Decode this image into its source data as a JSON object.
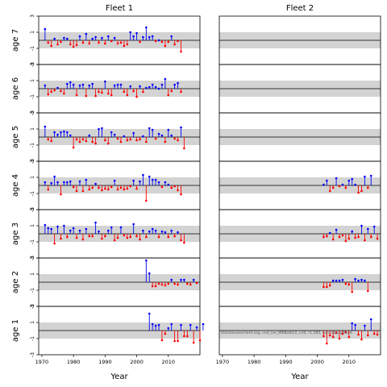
{
  "chart_data": {
    "type": "scatter",
    "style": "residual lollipop panels",
    "xlabel": "Year",
    "xlim": [
      1969,
      2020
    ],
    "ylim": [
      -3,
      3
    ],
    "y_ticks": [
      -3,
      -1,
      1,
      3
    ],
    "x_ticks": [
      1970,
      1980,
      1990,
      2000,
      2010
    ],
    "colors": {
      "positive": "#0000ff",
      "negative": "#ff0000",
      "band": "#d3d3d3",
      "zero_line": "#000000"
    },
    "fleets": [
      "Fleet 1",
      "Fleet 2"
    ],
    "row_labels": [
      "age 7",
      "age 6",
      "age 5",
      "age 4",
      "age 3",
      "age 2",
      "age 1"
    ],
    "watermark": "stockassessment.org, cod_nei_WKBaltic2_v16, r1.285, run: dbs2y0lunt.",
    "panels": [
      {
        "fleet": 0,
        "age": "age 7",
        "x_start": 1971,
        "values": [
          1.4,
          -0.3,
          -0.7,
          0.2,
          -0.5,
          -0.2,
          0.3,
          0.2,
          -0.5,
          -0.8,
          -0.6,
          0.5,
          -0.3,
          0.8,
          -0.4,
          0.2,
          0.4,
          -0.3,
          0.3,
          -0.4,
          0.5,
          -0.1,
          0.3,
          -0.4,
          -0.3,
          -0.7,
          -0.5,
          1.0,
          0.5,
          0.9,
          -0.2,
          0.4,
          1.6,
          0.4,
          0.5,
          -0.1,
          0.0,
          -0.2,
          -0.7,
          -0.2,
          0.5,
          -0.5,
          -0.1,
          -1.4
        ]
      },
      {
        "fleet": 0,
        "age": "age 6",
        "x_start": 1971,
        "values": [
          0.4,
          -0.7,
          -0.4,
          -0.2,
          0.1,
          -0.3,
          -0.6,
          0.6,
          0.8,
          0.5,
          -0.8,
          0.4,
          0.5,
          -0.9,
          0.4,
          0.6,
          -0.9,
          -0.4,
          -0.5,
          0.9,
          -0.6,
          -0.8,
          0.4,
          0.5,
          0.5,
          -0.4,
          -0.8,
          0.3,
          -0.3,
          -1.0,
          0.3,
          -0.4,
          0.1,
          0.2,
          0.5,
          0.2,
          0.0,
          0.5,
          1.2,
          -0.8,
          -0.3,
          0.5,
          0.7,
          -0.4
        ]
      },
      {
        "fleet": 0,
        "age": "age 5",
        "x_start": 1971,
        "values": [
          1.3,
          -0.3,
          -0.5,
          0.6,
          0.3,
          0.6,
          0.7,
          0.6,
          0.2,
          -1.3,
          -0.3,
          -0.6,
          -0.3,
          -0.5,
          0.2,
          -0.6,
          -0.8,
          1.0,
          1.1,
          -0.4,
          -0.8,
          0.6,
          0.3,
          -0.2,
          -0.6,
          0.1,
          -0.4,
          -0.3,
          0.5,
          -0.4,
          -0.3,
          0.1,
          -0.6,
          1.1,
          0.9,
          -0.2,
          0.4,
          0.2,
          -0.6,
          0.9,
          0.2,
          -0.2,
          -0.4,
          1.2,
          -1.4
        ]
      },
      {
        "fleet": 0,
        "age": "age 4",
        "x_start": 1971,
        "values": [
          0.4,
          -0.5,
          0.3,
          1.1,
          0.4,
          -1.1,
          0.4,
          0.4,
          0.5,
          -0.2,
          -0.7,
          0.5,
          -0.7,
          0.7,
          -0.5,
          -0.3,
          0.2,
          -0.3,
          -0.6,
          -0.4,
          -0.5,
          -0.2,
          0.6,
          -0.5,
          -0.3,
          -0.5,
          -0.4,
          -0.1,
          0.6,
          -0.4,
          0.5,
          1.3,
          -1.9,
          1.1,
          0.7,
          0.7,
          0.4,
          -0.2,
          0.4,
          0.1,
          -0.3,
          -0.1,
          -0.6,
          -1.1
        ]
      },
      {
        "fleet": 0,
        "age": "age 3",
        "x_start": 1971,
        "values": [
          1.1,
          0.7,
          0.6,
          -1.2,
          0.9,
          -0.6,
          1.0,
          -0.4,
          0.4,
          0.7,
          -0.5,
          0.4,
          -0.7,
          0.6,
          -0.3,
          -0.3,
          1.4,
          0.3,
          -0.6,
          -0.3,
          0.4,
          0.8,
          -0.8,
          -0.5,
          0.8,
          -0.2,
          -0.5,
          -0.4,
          1.2,
          -0.3,
          -0.7,
          0.4,
          -0.4,
          0.3,
          0.6,
          0.4,
          -0.4,
          0.3,
          0.2,
          -0.4,
          0.4,
          -0.3,
          0.2,
          -0.8,
          -1.1
        ]
      },
      {
        "fleet": 0,
        "age": "age 2",
        "x_start": 2003,
        "values": [
          2.7,
          1.1,
          -0.5,
          -0.5,
          -0.2,
          -0.3,
          -0.4,
          -0.2,
          0.3,
          -0.2,
          -0.3,
          0.3,
          0.3,
          -0.2,
          -0.3,
          0.3,
          -0.1
        ]
      },
      {
        "fleet": 0,
        "age": "age 1",
        "x_start": 2004,
        "values": [
          2.1,
          0.8,
          0.6,
          0.7,
          -1.2,
          -0.4,
          0.3,
          0.8,
          -1.3,
          -1.3,
          0.7,
          -0.7,
          -0.7,
          0.7,
          -1.5,
          0.4,
          -1.2,
          0.8
        ]
      },
      {
        "fleet": 1,
        "age": "age 4",
        "x_start": 2002,
        "values": [
          0.1,
          0.6,
          -0.7,
          -0.3,
          0.9,
          -0.1,
          0.1,
          -0.3,
          0.6,
          0.8,
          0.1,
          -0.9,
          -0.7,
          1.1,
          -0.3,
          1.2
        ]
      },
      {
        "fleet": 1,
        "age": "age 3",
        "x_start": 2002,
        "values": [
          -0.4,
          -0.3,
          0.1,
          -0.7,
          0.5,
          -0.4,
          -0.2,
          -0.9,
          -0.6,
          0.3,
          -0.5,
          -0.4,
          1.0,
          -0.8,
          0.6,
          -0.4,
          0.9,
          -0.6
        ]
      },
      {
        "fleet": 1,
        "age": "age 2",
        "x_start": 2002,
        "values": [
          -0.6,
          -0.6,
          -0.4,
          0.2,
          0.2,
          0.2,
          0.3,
          -0.2,
          -0.3,
          -1.2,
          0.4,
          0.2,
          0.3,
          0.2,
          -1.1
        ]
      },
      {
        "fleet": 1,
        "age": "age 1",
        "x_start": 2002,
        "values": [
          -0.7,
          -1.6,
          -0.6,
          -0.8,
          -0.3,
          -1.0,
          -0.4,
          -0.2,
          -0.8,
          0.9,
          0.7,
          -0.5,
          -1.1,
          0.6,
          -0.6,
          1.4,
          -0.4,
          -0.5
        ]
      }
    ]
  }
}
